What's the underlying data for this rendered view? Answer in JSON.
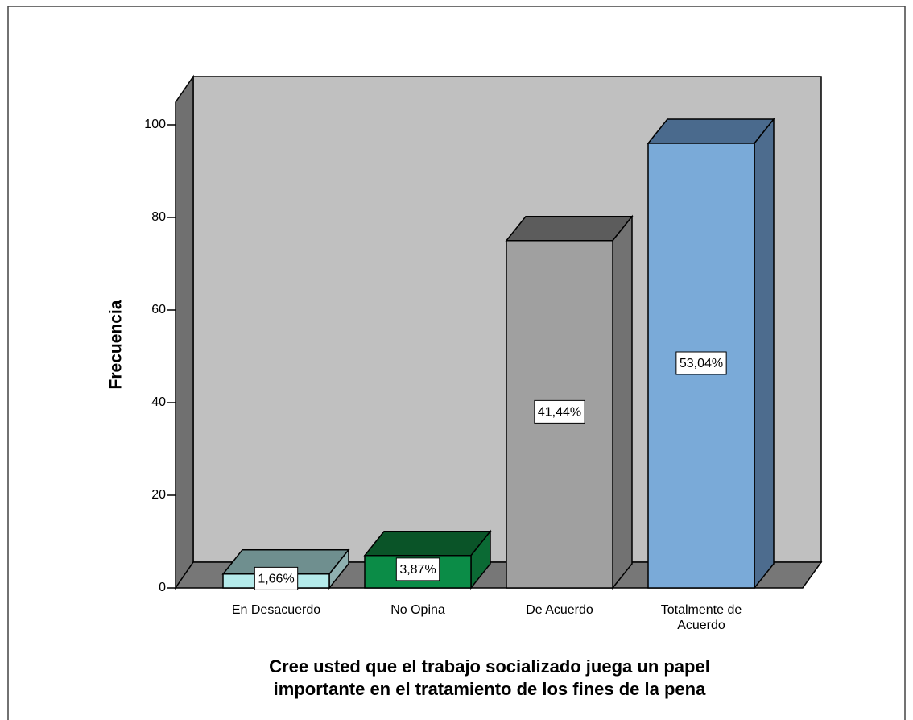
{
  "chart_data": {
    "type": "bar3d",
    "ylabel": "Frecuencia",
    "xlabel": [
      "Cree usted que el trabajo socializado juega un papel",
      "importante en el tratamiento de los fines de la pena"
    ],
    "categories": [
      "En Desacuerdo",
      "No Opina",
      "De Acuerdo",
      "Totalmente de Acuerdo"
    ],
    "values": [
      3,
      7,
      75,
      96
    ],
    "percent": {
      "values": [
        1.66,
        3.87,
        41.44,
        53.04
      ],
      "value_labels": [
        "1,66%",
        "3,87%",
        "41,44%",
        "53,04%"
      ]
    },
    "colors": [
      {
        "front": "#b4eaea",
        "top": "#6f8f8f",
        "side": "#8fb0b0"
      },
      {
        "front": "#0b8c47",
        "top": "#0a5428",
        "side": "#0b6a34"
      },
      {
        "front": "#a0a0a0",
        "top": "#5c5c5c",
        "side": "#727272"
      },
      {
        "front": "#7aaad8",
        "top": "#4a6a8d",
        "side": "#4d6c8e"
      }
    ],
    "ylim": [
      0,
      100
    ],
    "yticks": [
      0,
      20,
      40,
      60,
      80,
      100
    ]
  }
}
